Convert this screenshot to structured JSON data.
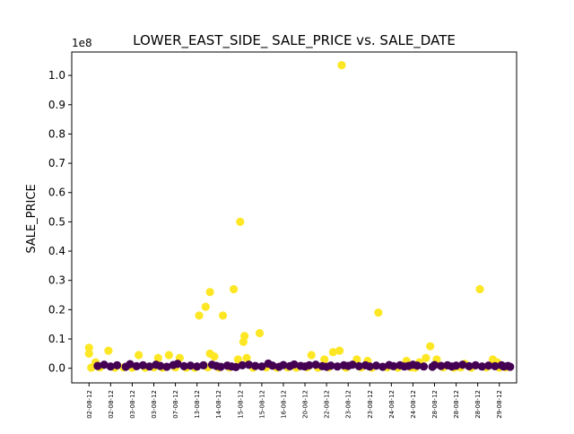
{
  "chart_data": {
    "type": "scatter",
    "title": "LOWER_EAST_SIDE_ SALE_PRICE vs. SALE_DATE",
    "xlabel": "",
    "ylabel": "SALE_PRICE",
    "y_exponent_label": "1e8",
    "y_multiplier": 100000000,
    "ylim": [
      -0.05,
      1.08
    ],
    "xlim": [
      -0.8,
      19.8
    ],
    "y_ticks": [
      {
        "value": 0.0,
        "label": "0.0"
      },
      {
        "value": 0.1,
        "label": "0.1"
      },
      {
        "value": 0.2,
        "label": "0.2"
      },
      {
        "value": 0.3,
        "label": "0.3"
      },
      {
        "value": 0.4,
        "label": "0.4"
      },
      {
        "value": 0.5,
        "label": "0.5"
      },
      {
        "value": 0.6,
        "label": "0.6"
      },
      {
        "value": 0.7,
        "label": "0.7"
      },
      {
        "value": 0.8,
        "label": "0.8"
      },
      {
        "value": 0.9,
        "label": "0.9"
      },
      {
        "value": 1.0,
        "label": "1.0"
      }
    ],
    "x_tick_labels": [
      "02-08-12",
      "02-08-12",
      "03-08-12",
      "03-08-12",
      "07-08-12",
      "13-08-12",
      "14-08-12",
      "15-08-12",
      "15-08-12",
      "16-08-12",
      "20-08-12",
      "22-08-12",
      "23-08-12",
      "23-08-12",
      "24-08-12",
      "24-08-12",
      "28-08-12",
      "28-08-12",
      "28-08-12",
      "29-08-12"
    ],
    "grid": false,
    "legend": "none",
    "colors": {
      "high": "#fde725",
      "low": "#440154"
    },
    "series": [
      {
        "color_key": "high",
        "points": [
          [
            0,
            0.07
          ],
          [
            0,
            0.05
          ],
          [
            0.3,
            0.02
          ],
          [
            0.9,
            0.06
          ],
          [
            2.3,
            0.045
          ],
          [
            3.2,
            0.035
          ],
          [
            3.7,
            0.045
          ],
          [
            4.2,
            0.035
          ],
          [
            5.1,
            0.18
          ],
          [
            5.4,
            0.21
          ],
          [
            5.6,
            0.26
          ],
          [
            5.6,
            0.05
          ],
          [
            5.8,
            0.04
          ],
          [
            6.2,
            0.18
          ],
          [
            6.7,
            0.27
          ],
          [
            7.0,
            0.5
          ],
          [
            7.2,
            0.11
          ],
          [
            7.15,
            0.09
          ],
          [
            7.3,
            0.035
          ],
          [
            7.9,
            0.12
          ],
          [
            6.9,
            0.03
          ],
          [
            10.3,
            0.045
          ],
          [
            10.9,
            0.03
          ],
          [
            11.3,
            0.055
          ],
          [
            11.6,
            0.06
          ],
          [
            11.7,
            1.035
          ],
          [
            12.4,
            0.03
          ],
          [
            12.9,
            0.025
          ],
          [
            13.4,
            0.19
          ],
          [
            14.7,
            0.025
          ],
          [
            15.3,
            0.02
          ],
          [
            15.6,
            0.035
          ],
          [
            15.8,
            0.075
          ],
          [
            16.1,
            0.03
          ],
          [
            17.4,
            0.015
          ],
          [
            18.1,
            0.27
          ],
          [
            18.7,
            0.03
          ],
          [
            18.9,
            0.02
          ],
          [
            0.1,
            0.002
          ],
          [
            0.5,
            0.003
          ],
          [
            1.2,
            0.002
          ],
          [
            1.6,
            0.003
          ],
          [
            2.0,
            0.002
          ],
          [
            2.6,
            0.002
          ],
          [
            3.0,
            0.003
          ],
          [
            3.4,
            0.002
          ],
          [
            4.0,
            0.003
          ],
          [
            4.5,
            0.002
          ],
          [
            4.9,
            0.002
          ],
          [
            5.5,
            0.003
          ],
          [
            6.0,
            0.002
          ],
          [
            6.5,
            0.003
          ],
          [
            7.6,
            0.002
          ],
          [
            8.2,
            0.003
          ],
          [
            8.7,
            0.002
          ],
          [
            9.2,
            0.003
          ],
          [
            9.6,
            0.002
          ],
          [
            10.1,
            0.003
          ],
          [
            10.6,
            0.002
          ],
          [
            11.1,
            0.003
          ],
          [
            11.9,
            0.002
          ],
          [
            12.6,
            0.003
          ],
          [
            13.1,
            0.002
          ],
          [
            13.8,
            0.003
          ],
          [
            14.3,
            0.002
          ],
          [
            14.9,
            0.003
          ],
          [
            15.1,
            0.002
          ],
          [
            16.4,
            0.003
          ],
          [
            16.9,
            0.002
          ],
          [
            17.2,
            0.003
          ],
          [
            17.7,
            0.002
          ],
          [
            18.4,
            0.003
          ],
          [
            19.0,
            0.002
          ],
          [
            19.3,
            0.003
          ]
        ]
      },
      {
        "color_key": "low",
        "points": [
          [
            0.4,
            0.008
          ],
          [
            0.7,
            0.012
          ],
          [
            1.0,
            0.006
          ],
          [
            1.3,
            0.01
          ],
          [
            1.7,
            0.005
          ],
          [
            1.9,
            0.014
          ],
          [
            2.2,
            0.007
          ],
          [
            2.5,
            0.01
          ],
          [
            2.8,
            0.006
          ],
          [
            3.1,
            0.012
          ],
          [
            3.3,
            0.008
          ],
          [
            3.6,
            0.005
          ],
          [
            3.9,
            0.011
          ],
          [
            4.1,
            0.015
          ],
          [
            4.4,
            0.007
          ],
          [
            4.7,
            0.009
          ],
          [
            5.0,
            0.006
          ],
          [
            5.3,
            0.01
          ],
          [
            5.7,
            0.012
          ],
          [
            5.9,
            0.008
          ],
          [
            6.1,
            0.005
          ],
          [
            6.4,
            0.009
          ],
          [
            6.6,
            0.006
          ],
          [
            6.8,
            0.004
          ],
          [
            7.1,
            0.01
          ],
          [
            7.4,
            0.012
          ],
          [
            7.7,
            0.008
          ],
          [
            8.0,
            0.006
          ],
          [
            8.3,
            0.016
          ],
          [
            8.5,
            0.009
          ],
          [
            8.8,
            0.005
          ],
          [
            9.0,
            0.011
          ],
          [
            9.3,
            0.007
          ],
          [
            9.5,
            0.013
          ],
          [
            9.8,
            0.008
          ],
          [
            10.0,
            0.006
          ],
          [
            10.2,
            0.01
          ],
          [
            10.5,
            0.012
          ],
          [
            10.8,
            0.007
          ],
          [
            11.0,
            0.005
          ],
          [
            11.2,
            0.009
          ],
          [
            11.5,
            0.006
          ],
          [
            11.8,
            0.01
          ],
          [
            12.0,
            0.008
          ],
          [
            12.2,
            0.012
          ],
          [
            12.5,
            0.007
          ],
          [
            12.8,
            0.01
          ],
          [
            13.0,
            0.006
          ],
          [
            13.3,
            0.009
          ],
          [
            13.6,
            0.005
          ],
          [
            13.9,
            0.011
          ],
          [
            14.1,
            0.007
          ],
          [
            14.4,
            0.01
          ],
          [
            14.6,
            0.006
          ],
          [
            14.8,
            0.008
          ],
          [
            15.0,
            0.012
          ],
          [
            15.2,
            0.009
          ],
          [
            15.5,
            0.006
          ],
          [
            15.9,
            0.005
          ],
          [
            16.0,
            0.011
          ],
          [
            16.3,
            0.008
          ],
          [
            16.6,
            0.01
          ],
          [
            16.8,
            0.006
          ],
          [
            17.0,
            0.009
          ],
          [
            17.3,
            0.012
          ],
          [
            17.6,
            0.007
          ],
          [
            17.9,
            0.01
          ],
          [
            18.2,
            0.006
          ],
          [
            18.5,
            0.009
          ],
          [
            18.8,
            0.007
          ],
          [
            19.1,
            0.01
          ],
          [
            19.2,
            0.006
          ],
          [
            19.4,
            0.008
          ],
          [
            19.5,
            0.005
          ]
        ]
      }
    ]
  }
}
